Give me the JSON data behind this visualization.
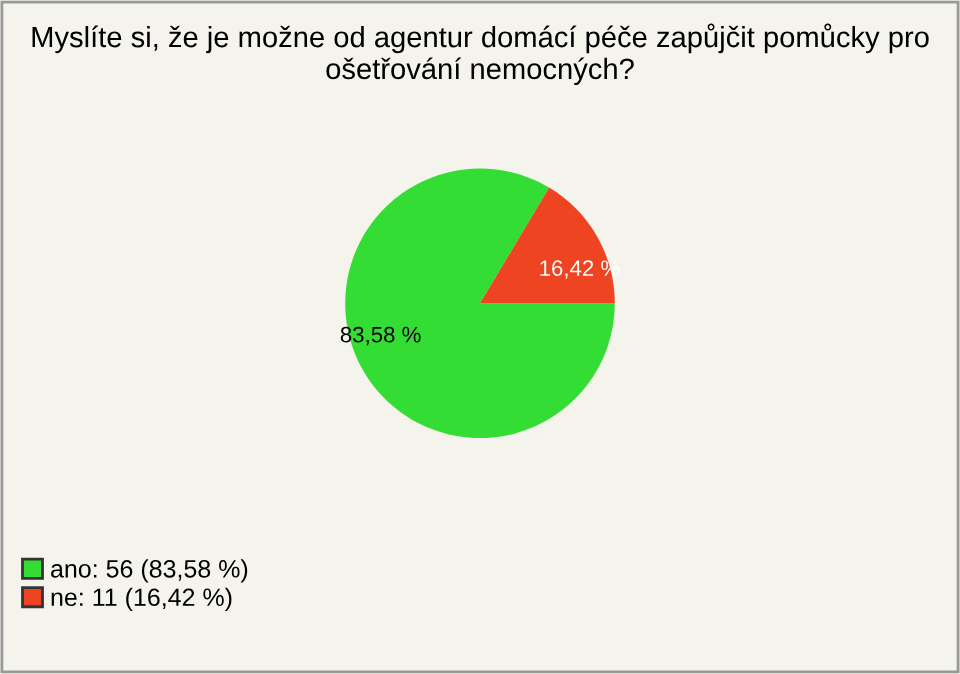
{
  "chart_data": {
    "type": "pie",
    "title": "Myslíte si, že je možne od agentur domácí péče zapůjčit pomůcky pro ošetřování nemocných?",
    "categories": [
      "ano: 56 (83,58 %)",
      "ne: 11 (16,42 %)"
    ],
    "values": [
      83.58,
      16.42
    ],
    "value_labels": [
      "83,58 %",
      "16,42 %"
    ],
    "colors": [
      "#33dd33",
      "#ee4422"
    ],
    "legend": "bottom left"
  }
}
